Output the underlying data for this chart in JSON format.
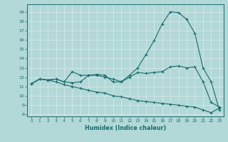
{
  "xlabel": "Humidex (Indice chaleur)",
  "bg_color": "#b2d8d8",
  "grid_color": "#e8f4f4",
  "line_color": "#1a6b6b",
  "xlim": [
    -0.5,
    23.5
  ],
  "ylim": [
    7.8,
    19.8
  ],
  "yticks": [
    8,
    9,
    10,
    11,
    12,
    13,
    14,
    15,
    16,
    17,
    18,
    19
  ],
  "xticks": [
    0,
    1,
    2,
    3,
    4,
    5,
    6,
    7,
    8,
    9,
    10,
    11,
    12,
    13,
    14,
    15,
    16,
    17,
    18,
    19,
    20,
    21,
    22,
    23
  ],
  "series": [
    [
      11.3,
      11.8,
      11.7,
      11.8,
      11.5,
      12.6,
      12.2,
      12.2,
      12.3,
      12.2,
      11.5,
      11.5,
      12.2,
      13.0,
      14.4,
      15.9,
      17.7,
      19.0,
      18.9,
      18.2,
      16.7,
      13.0,
      11.5,
      8.5
    ],
    [
      11.3,
      11.8,
      11.7,
      11.8,
      11.5,
      11.4,
      11.5,
      12.2,
      12.2,
      12.0,
      11.8,
      11.5,
      12.0,
      12.5,
      12.4,
      12.5,
      12.6,
      13.1,
      13.2,
      13.0,
      13.1,
      11.5,
      9.3,
      8.8
    ],
    [
      11.3,
      11.8,
      11.7,
      11.5,
      11.2,
      11.0,
      10.8,
      10.6,
      10.4,
      10.3,
      10.0,
      9.9,
      9.7,
      9.5,
      9.4,
      9.3,
      9.2,
      9.1,
      9.0,
      8.9,
      8.8,
      8.5,
      8.2,
      8.7
    ]
  ]
}
